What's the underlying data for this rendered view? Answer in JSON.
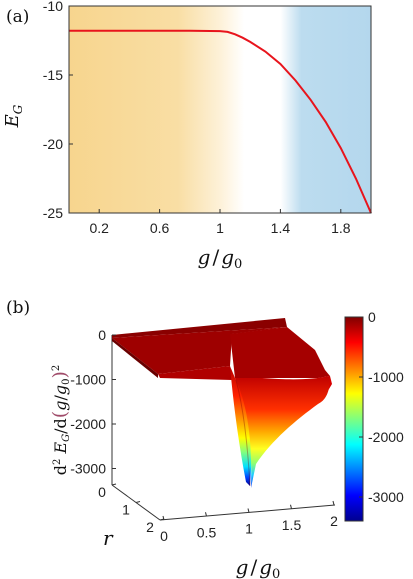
{
  "chart_data": [
    {
      "panel_label": "(a)",
      "type": "line",
      "xlabel_parts": [
        "g",
        "/",
        "g",
        "0"
      ],
      "ylabel_parts": [
        "E",
        "G"
      ],
      "xlim": [
        0,
        2
      ],
      "ylim": [
        -25,
        -10
      ],
      "x_ticks": [
        0.2,
        0.6,
        1.0,
        1.4,
        1.8
      ],
      "x_tick_labels": [
        "0.2",
        "0.6",
        "1",
        "1.4",
        "1.8"
      ],
      "y_ticks": [
        -10,
        -15,
        -20,
        -25
      ],
      "y_tick_labels": [
        "-10",
        "-15",
        "-20",
        "-25"
      ],
      "series": [
        {
          "color": "#e8141c",
          "x": [
            0.0,
            0.2,
            0.4,
            0.6,
            0.8,
            1.0,
            1.05,
            1.1,
            1.15,
            1.2,
            1.3,
            1.4,
            1.5,
            1.6,
            1.7,
            1.8,
            1.9,
            2.0
          ],
          "y": [
            -11.8,
            -11.8,
            -11.8,
            -11.8,
            -11.8,
            -11.82,
            -11.88,
            -12.05,
            -12.3,
            -12.6,
            -13.3,
            -14.2,
            -15.4,
            -16.8,
            -18.4,
            -20.3,
            -22.5,
            -25.0
          ]
        }
      ],
      "background_regions": [
        {
          "from": 0.0,
          "to": 1.05,
          "color": "#f7d58e"
        },
        {
          "from": 1.05,
          "to": 1.5,
          "color": "#ffffff"
        },
        {
          "from": 1.5,
          "to": 2.0,
          "color": "#b9dbef"
        }
      ],
      "grid": false
    },
    {
      "panel_label": "(b)",
      "type": "surface3d",
      "xlabel_parts": [
        "g",
        "/",
        "g",
        "0"
      ],
      "ylabel_parts": [
        "r"
      ],
      "zlabel_text": [
        "d",
        "2",
        " ",
        "E",
        "G",
        "/d",
        "(",
        "g",
        "/",
        "g",
        "0",
        ")",
        "2"
      ],
      "x_tick_labels": [
        "0",
        "0.5",
        "1",
        "1.5",
        "2"
      ],
      "r_tick_labels": [
        "0",
        "1",
        "2"
      ],
      "z_tick_labels": [
        "0",
        "-1000",
        "-2000",
        "-3000"
      ],
      "colorbar": {
        "range": [
          -3400,
          0
        ],
        "tick_labels": [
          "0",
          "-1000",
          "-2000",
          "-3000"
        ],
        "ticks": [
          0,
          -1000,
          -2000,
          -3000
        ],
        "colormap": "jet"
      }
    }
  ]
}
